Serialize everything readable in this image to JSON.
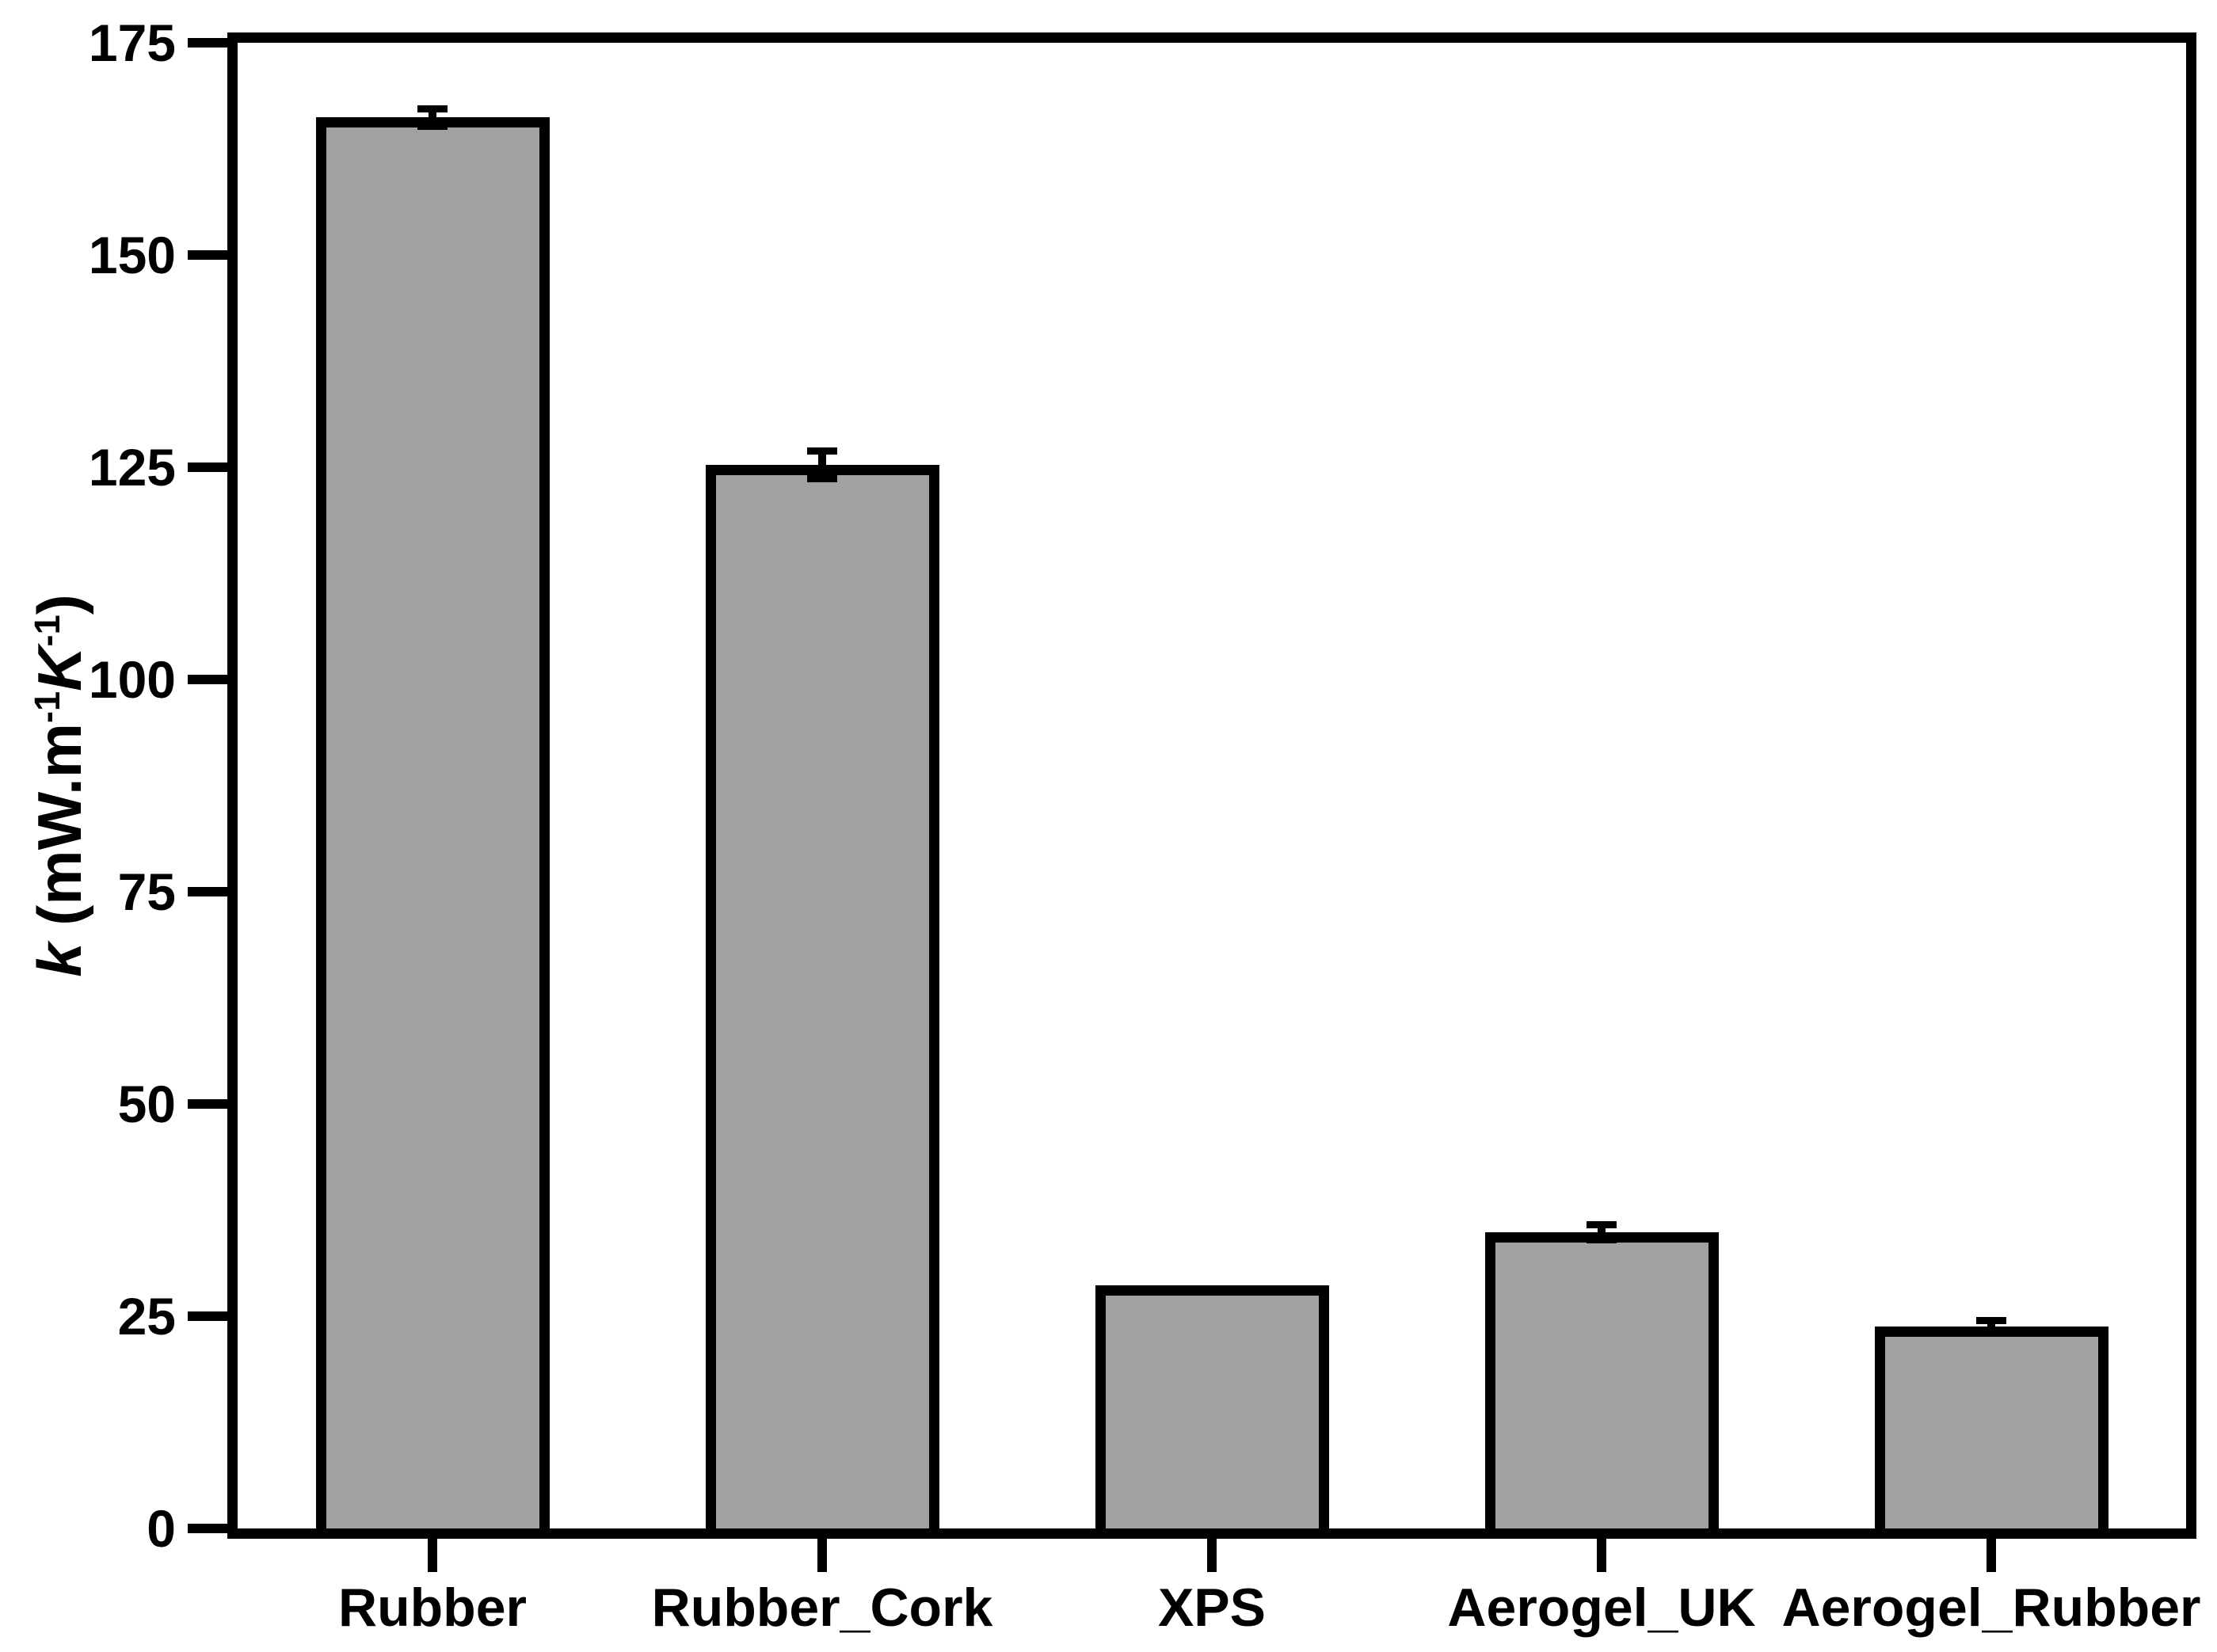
{
  "figure": {
    "ylabel_parts": {
      "symbol": "k",
      "unit_prefix": " (mW.m",
      "sup1": "-1",
      "unit_k": "K",
      "sup2": "-1",
      "unit_close": ")"
    }
  },
  "chart_data": {
    "type": "bar",
    "title": "",
    "xlabel": "",
    "ylabel": "k (mW.m-1K-1)",
    "categories": [
      "Rubber",
      "Rubber_Cork",
      "XPS",
      "Aerogel_UK",
      "Aerogel_Rubber"
    ],
    "values": [
      166.2,
      125.3,
      28.6,
      34.9,
      23.8
    ],
    "errors": [
      1.1,
      1.7,
      null,
      0.9,
      0.7
    ],
    "ylim": [
      0,
      175
    ],
    "yticks": [
      0,
      25,
      50,
      75,
      100,
      125,
      150,
      175
    ],
    "grid": false,
    "legend": null,
    "bar_fill_color": "#a1a1a1",
    "bar_edge_color": "#000000",
    "axis_color": "#000000",
    "error_bar_color": "#000000",
    "background_color": "#ffffff"
  }
}
